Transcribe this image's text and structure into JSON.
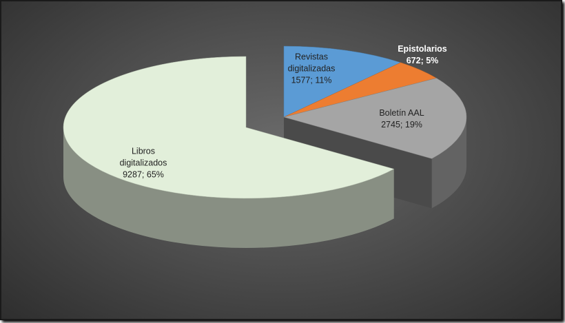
{
  "chart_data": {
    "type": "pie",
    "categories": [
      "Revistas digitalizadas",
      "Epistolarios",
      "Boletín AAL",
      "Libros digitalizados"
    ],
    "values": [
      1577,
      672,
      2745,
      9287
    ],
    "value_labels": [
      "1577; 11%",
      "672; 5%",
      "2745; 19%",
      "9287; 65%"
    ],
    "colors": [
      "#5b9bd5",
      "#ed7d31",
      "#a5a5a5",
      "#e2efda"
    ]
  }
}
